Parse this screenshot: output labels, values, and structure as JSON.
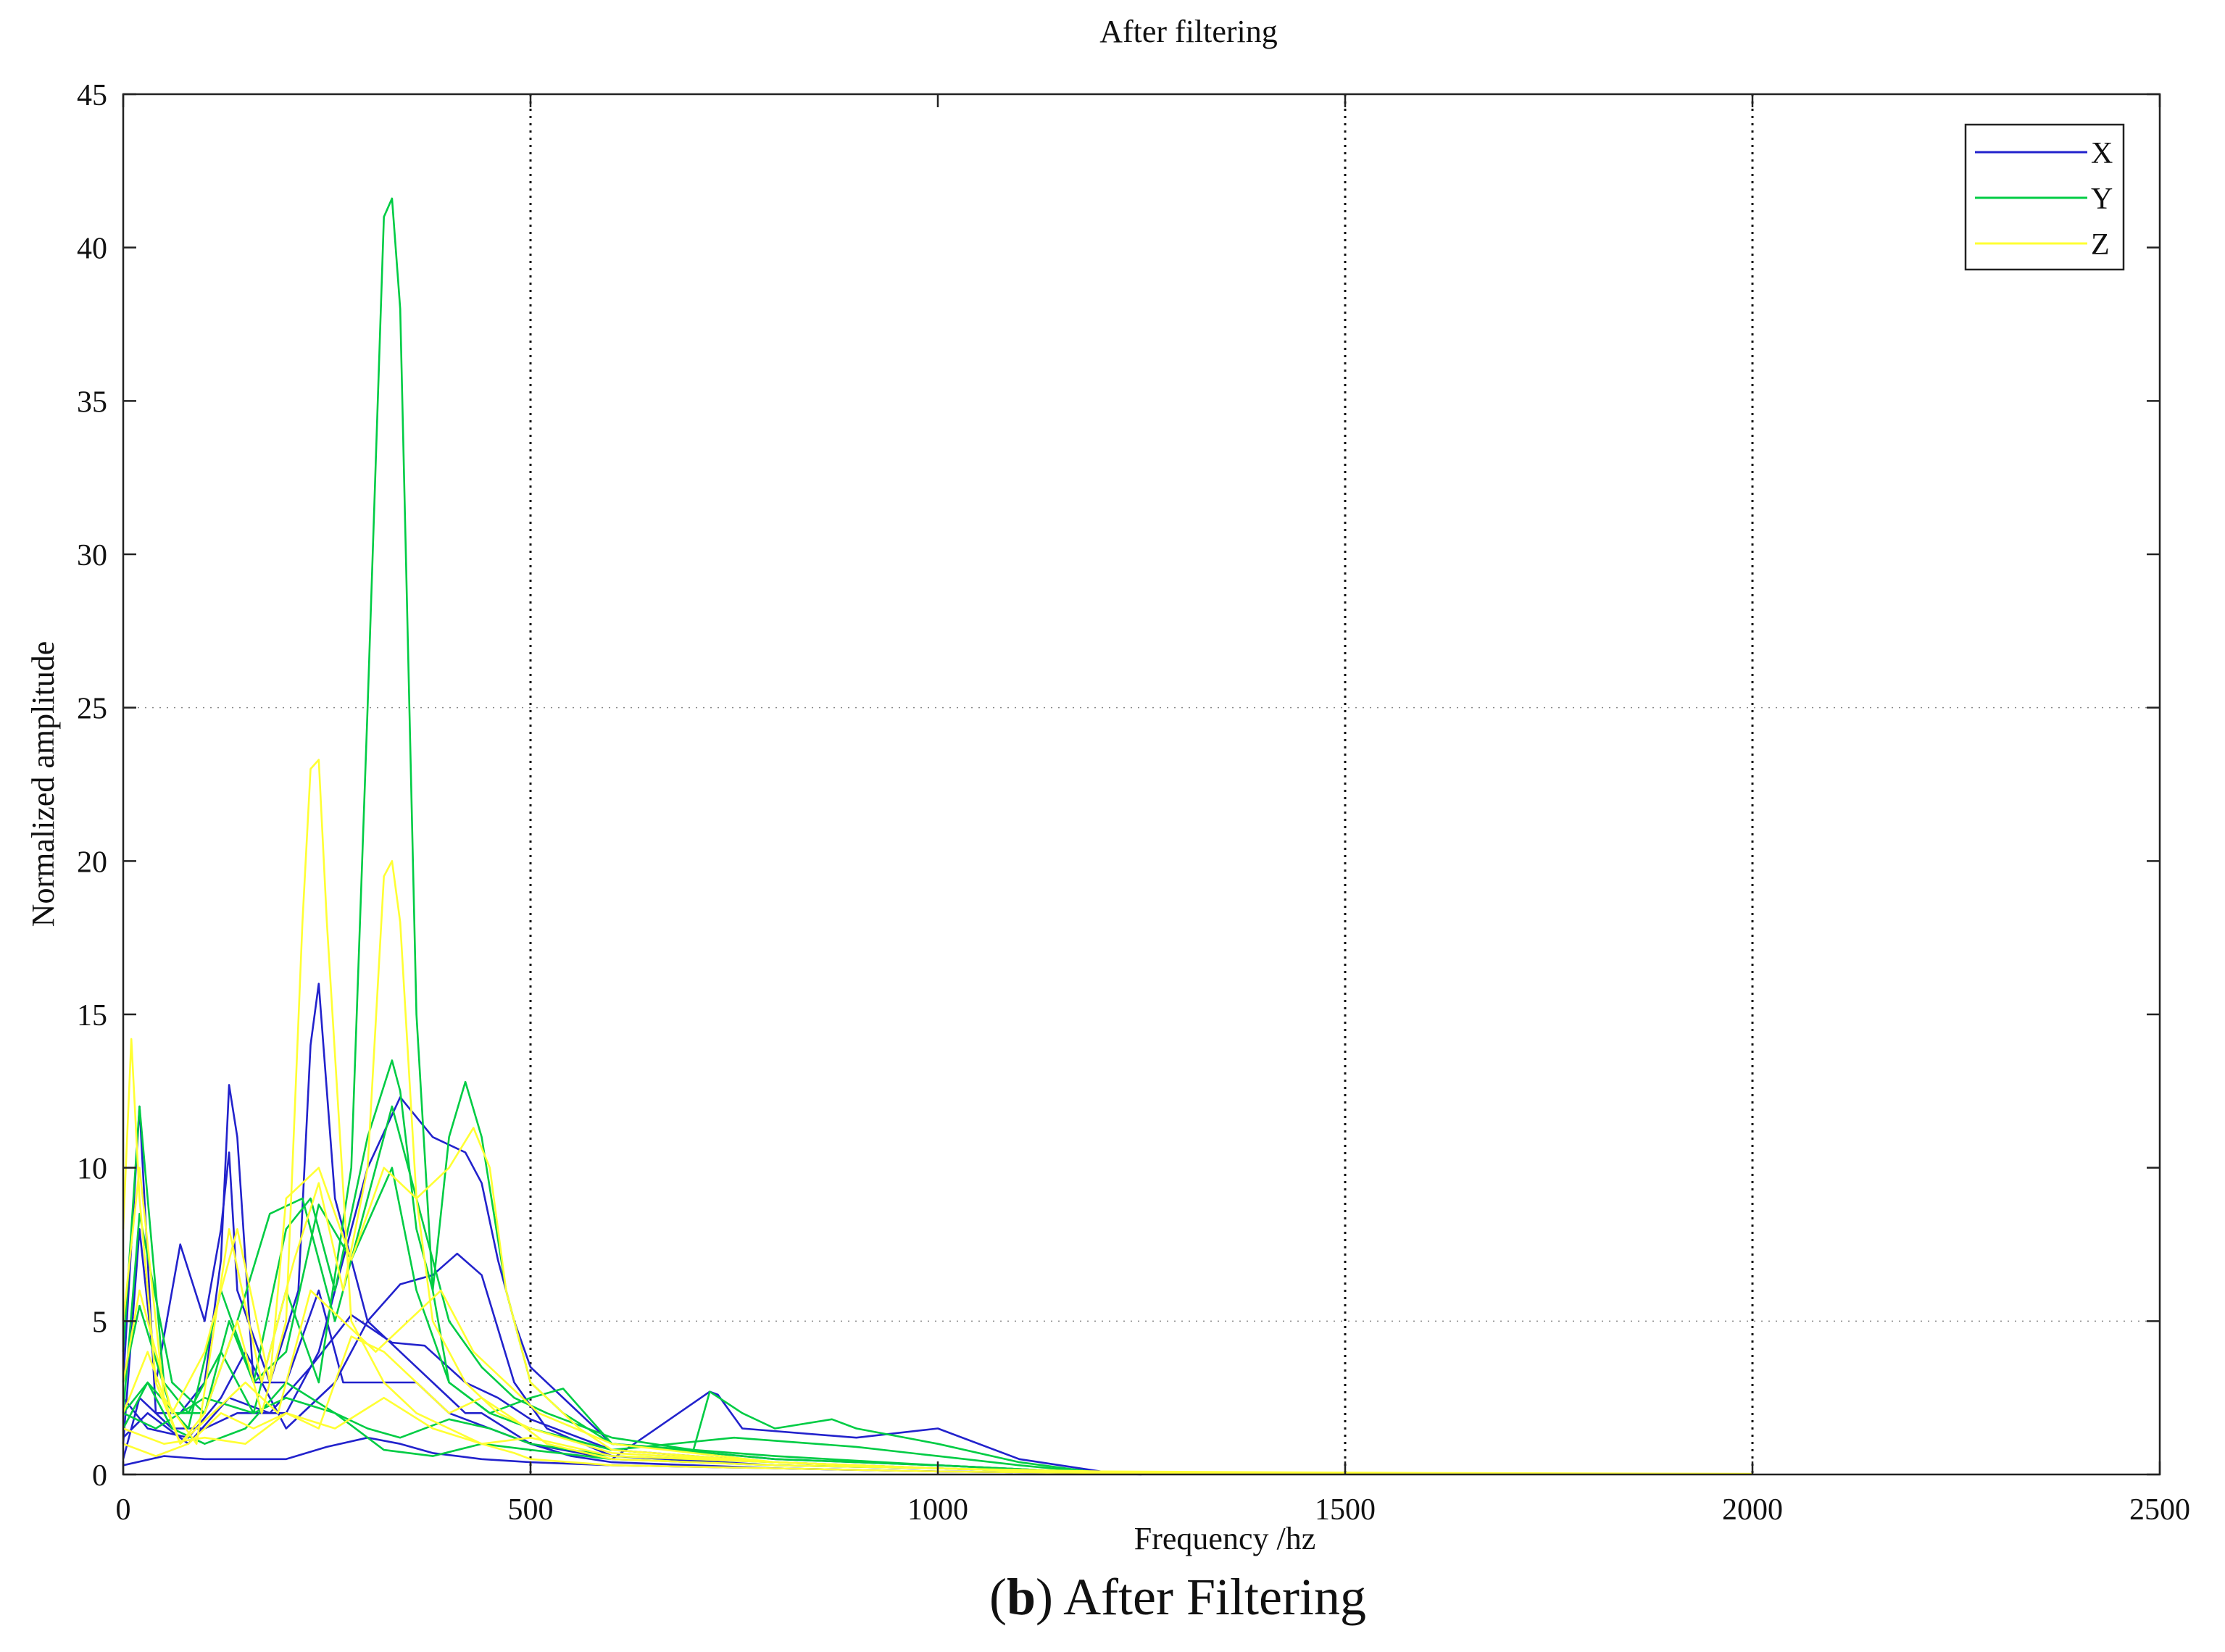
{
  "figure": {
    "caption_letter": "b",
    "caption_text": "After Filtering",
    "background": "#ffffff",
    "plot_background": "#ffffff"
  },
  "chart_data": {
    "type": "line",
    "title": "After filtering",
    "xlabel": "Frequency /hz",
    "ylabel": "Normalized amplitude",
    "xlim": [
      0,
      2500
    ],
    "ylim": [
      0,
      45
    ],
    "xticks": [
      0,
      500,
      1000,
      1500,
      2000,
      2500
    ],
    "yticks": [
      0,
      5,
      10,
      15,
      20,
      25,
      30,
      35,
      40,
      45
    ],
    "vertical_gridlines_at": [
      500,
      1500,
      2000
    ],
    "horizontal_dotted_lines_at": [
      5,
      25
    ],
    "legend": {
      "position": "top-right",
      "entries": [
        "X",
        "Y",
        "Z"
      ]
    },
    "colors": {
      "X": "#2222cc",
      "Y": "#00cc44",
      "Z": "#ffff33"
    },
    "series": [
      {
        "name": "X",
        "color": "#2222cc",
        "x": [
          0,
          20,
          40,
          70,
          100,
          120,
          130,
          140,
          160,
          200,
          240,
          270,
          320,
          360,
          400,
          500,
          550,
          600,
          700,
          800,
          1000,
          1200,
          1250
        ],
        "y": [
          3,
          12,
          2,
          2,
          3,
          7,
          12.7,
          11,
          3,
          3,
          6,
          3,
          3,
          3,
          2,
          1,
          0.6,
          0.4,
          0.3,
          0.2,
          0.1,
          0.05,
          0
        ]
      },
      {
        "name": "X",
        "color": "#2222cc",
        "x": [
          0,
          20,
          40,
          70,
          100,
          120,
          130,
          140,
          180,
          215,
          230,
          240,
          260,
          300,
          340,
          380,
          420,
          440,
          470,
          500,
          600,
          720,
          730,
          760,
          900,
          1000,
          1100,
          1200
        ],
        "y": [
          1,
          8,
          3,
          7.5,
          5,
          8,
          10.5,
          6,
          3,
          6,
          14,
          16,
          9,
          5,
          4,
          3,
          2,
          2,
          1.5,
          1,
          0.5,
          2.7,
          2.6,
          1.5,
          1.2,
          1.5,
          0.5,
          0.1
        ]
      },
      {
        "name": "X",
        "color": "#2222cc",
        "x": [
          0,
          20,
          60,
          100,
          140,
          200,
          240,
          280,
          300,
          340,
          380,
          420,
          440,
          460,
          480,
          500,
          600,
          800,
          1000,
          1200
        ],
        "y": [
          0.5,
          2.5,
          1.5,
          1.5,
          2,
          2,
          4,
          8,
          10,
          12.3,
          11,
          10.5,
          9.5,
          7,
          5,
          3.5,
          1,
          0.5,
          0.3,
          0.05
        ]
      },
      {
        "name": "X",
        "color": "#2222cc",
        "x": [
          0,
          30,
          80,
          120,
          150,
          200,
          260,
          300,
          340,
          380,
          410,
          440,
          480,
          520,
          600,
          800,
          1000,
          1200
        ],
        "y": [
          2.5,
          1.5,
          1.2,
          2.5,
          4,
          1.5,
          3,
          5,
          6.2,
          6.5,
          7.2,
          6.5,
          3,
          1.5,
          0.6,
          0.3,
          0.2,
          0.05
        ]
      },
      {
        "name": "X",
        "color": "#2222cc",
        "x": [
          0,
          50,
          100,
          150,
          200,
          250,
          300,
          340,
          380,
          440,
          500,
          600,
          800,
          1000,
          1200
        ],
        "y": [
          0.3,
          0.6,
          0.5,
          0.5,
          0.5,
          0.9,
          1.2,
          1,
          0.7,
          0.5,
          0.4,
          0.3,
          0.2,
          0.1,
          0.05
        ]
      },
      {
        "name": "X",
        "color": "#2222cc",
        "x": [
          0,
          30,
          80,
          130,
          180,
          230,
          280,
          330,
          370,
          420,
          460,
          500,
          600,
          800,
          1000,
          1200
        ],
        "y": [
          1.2,
          2,
          1,
          2.5,
          2,
          3.5,
          5.2,
          4.3,
          4.2,
          3,
          2.5,
          1.8,
          0.8,
          0.4,
          0.2,
          0.05
        ]
      },
      {
        "name": "Y",
        "color": "#00cc44",
        "x": [
          0,
          20,
          50,
          80,
          120,
          160,
          200,
          240,
          280,
          300,
          320,
          330,
          340,
          360,
          380,
          400,
          450,
          500,
          540,
          600,
          700,
          720,
          760,
          800,
          870,
          900,
          1000,
          1100,
          1200
        ],
        "y": [
          4,
          12,
          3,
          2,
          4,
          2,
          6,
          3,
          10,
          25,
          41,
          41.6,
          38,
          15,
          6,
          3,
          2,
          2.5,
          2.8,
          1,
          0.8,
          2.7,
          2,
          1.5,
          1.8,
          1.5,
          1,
          0.4,
          0.05
        ]
      },
      {
        "name": "Y",
        "color": "#00cc44",
        "x": [
          0,
          20,
          60,
          100,
          130,
          160,
          200,
          230,
          260,
          300,
          330,
          340,
          360,
          380,
          400,
          420,
          440,
          470,
          500,
          540,
          600,
          800,
          1000,
          1200
        ],
        "y": [
          2,
          8.5,
          3,
          2,
          5,
          3,
          8,
          9,
          6,
          11,
          13.5,
          12.5,
          8,
          6,
          11,
          12.8,
          11,
          6,
          3,
          2,
          1,
          0.5,
          0.3,
          0.05
        ]
      },
      {
        "name": "Y",
        "color": "#00cc44",
        "x": [
          0,
          20,
          60,
          100,
          140,
          180,
          220,
          260,
          300,
          330,
          360,
          400,
          440,
          480,
          520,
          600,
          700,
          800,
          1000,
          1200
        ],
        "y": [
          3,
          5.5,
          2,
          2,
          5,
          8.5,
          9,
          5,
          9,
          12,
          9,
          5,
          3.5,
          2.5,
          2,
          1.2,
          0.8,
          0.6,
          0.3,
          0.05
        ]
      },
      {
        "name": "Y",
        "color": "#00cc44",
        "x": [
          0,
          30,
          80,
          120,
          160,
          200,
          240,
          280,
          330,
          360,
          400,
          450,
          500,
          600,
          750,
          900,
          1000,
          1100,
          1200
        ],
        "y": [
          2,
          3,
          1.5,
          6,
          3,
          4,
          8.8,
          7,
          10,
          6,
          3,
          2,
          1.5,
          0.8,
          1.2,
          0.9,
          0.6,
          0.3,
          0.05
        ]
      },
      {
        "name": "Y",
        "color": "#00cc44",
        "x": [
          0,
          40,
          100,
          160,
          200,
          260,
          300,
          340,
          400,
          450,
          500,
          600,
          800,
          1000,
          1200
        ],
        "y": [
          2,
          1.5,
          2.5,
          2,
          2.5,
          2,
          1.5,
          1.2,
          1.8,
          1.5,
          1,
          0.6,
          0.4,
          0.2,
          0.05
        ]
      },
      {
        "name": "Y",
        "color": "#00cc44",
        "x": [
          0,
          30,
          60,
          100,
          150,
          200,
          260,
          320,
          380,
          440,
          500,
          600,
          800,
          1000,
          1200
        ],
        "y": [
          1.5,
          3,
          1.5,
          1,
          1.5,
          3,
          2,
          0.8,
          0.6,
          1,
          0.8,
          0.5,
          0.3,
          0.2,
          0.05
        ]
      },
      {
        "name": "Z",
        "color": "#ffff33",
        "x": [
          0,
          10,
          20,
          40,
          70,
          100,
          140,
          170,
          200,
          220,
          230,
          240,
          250,
          280,
          320,
          360,
          400,
          440,
          480,
          500,
          600,
          800,
          1000,
          1200,
          1500,
          2000
        ],
        "y": [
          8,
          14.2,
          9,
          3,
          1,
          2,
          5,
          2,
          5,
          18,
          23,
          23.3,
          18,
          5,
          3,
          2,
          1.5,
          1,
          0.7,
          0.5,
          0.3,
          0.2,
          0.1,
          0.05,
          0.03,
          0.02
        ]
      },
      {
        "name": "Z",
        "color": "#ffff33",
        "x": [
          0,
          20,
          50,
          90,
          130,
          170,
          210,
          240,
          270,
          300,
          320,
          330,
          340,
          360,
          380,
          420,
          460,
          500,
          600,
          800,
          1000,
          1200,
          1600,
          2000
        ],
        "y": [
          5,
          10,
          2.5,
          1,
          8,
          3,
          7,
          9.5,
          6,
          10,
          19.5,
          20,
          18,
          9,
          5,
          3,
          2,
          1.5,
          0.7,
          0.4,
          0.2,
          0.1,
          0.05,
          0.02
        ]
      },
      {
        "name": "Z",
        "color": "#ffff33",
        "x": [
          0,
          20,
          60,
          100,
          140,
          180,
          200,
          240,
          280,
          320,
          360,
          400,
          430,
          450,
          470,
          500,
          560,
          600,
          800,
          1000,
          1200
        ],
        "y": [
          3,
          6,
          2,
          4,
          8,
          3,
          9,
          10,
          7,
          10,
          9,
          10,
          11.3,
          10,
          6,
          3,
          1.5,
          0.8,
          0.4,
          0.2,
          0.05
        ]
      },
      {
        "name": "Z",
        "color": "#ffff33",
        "x": [
          0,
          30,
          70,
          110,
          150,
          190,
          230,
          270,
          310,
          350,
          390,
          430,
          470,
          510,
          600,
          800,
          1000,
          1200
        ],
        "y": [
          2,
          4,
          1,
          2,
          3,
          2,
          6,
          5,
          4,
          5,
          6,
          4,
          3,
          2,
          1,
          0.4,
          0.2,
          0.05
        ]
      },
      {
        "name": "Z",
        "color": "#ffff33",
        "x": [
          0,
          40,
          80,
          120,
          160,
          200,
          240,
          280,
          320,
          360,
          400,
          440,
          480,
          520,
          600,
          800,
          1000,
          1200
        ],
        "y": [
          1,
          0.6,
          1,
          2,
          1.5,
          2,
          1.5,
          4.5,
          4,
          3,
          2,
          2.5,
          1.8,
          1,
          0.5,
          0.3,
          0.2,
          0.05
        ]
      },
      {
        "name": "Z",
        "color": "#ffff33",
        "x": [
          0,
          50,
          100,
          150,
          200,
          260,
          320,
          380,
          440,
          500,
          600,
          800,
          1000,
          1200
        ],
        "y": [
          1.5,
          1,
          1.2,
          1,
          2,
          1.5,
          2.5,
          1.5,
          1,
          1.2,
          0.6,
          0.4,
          0.2,
          0.05
        ]
      }
    ]
  }
}
